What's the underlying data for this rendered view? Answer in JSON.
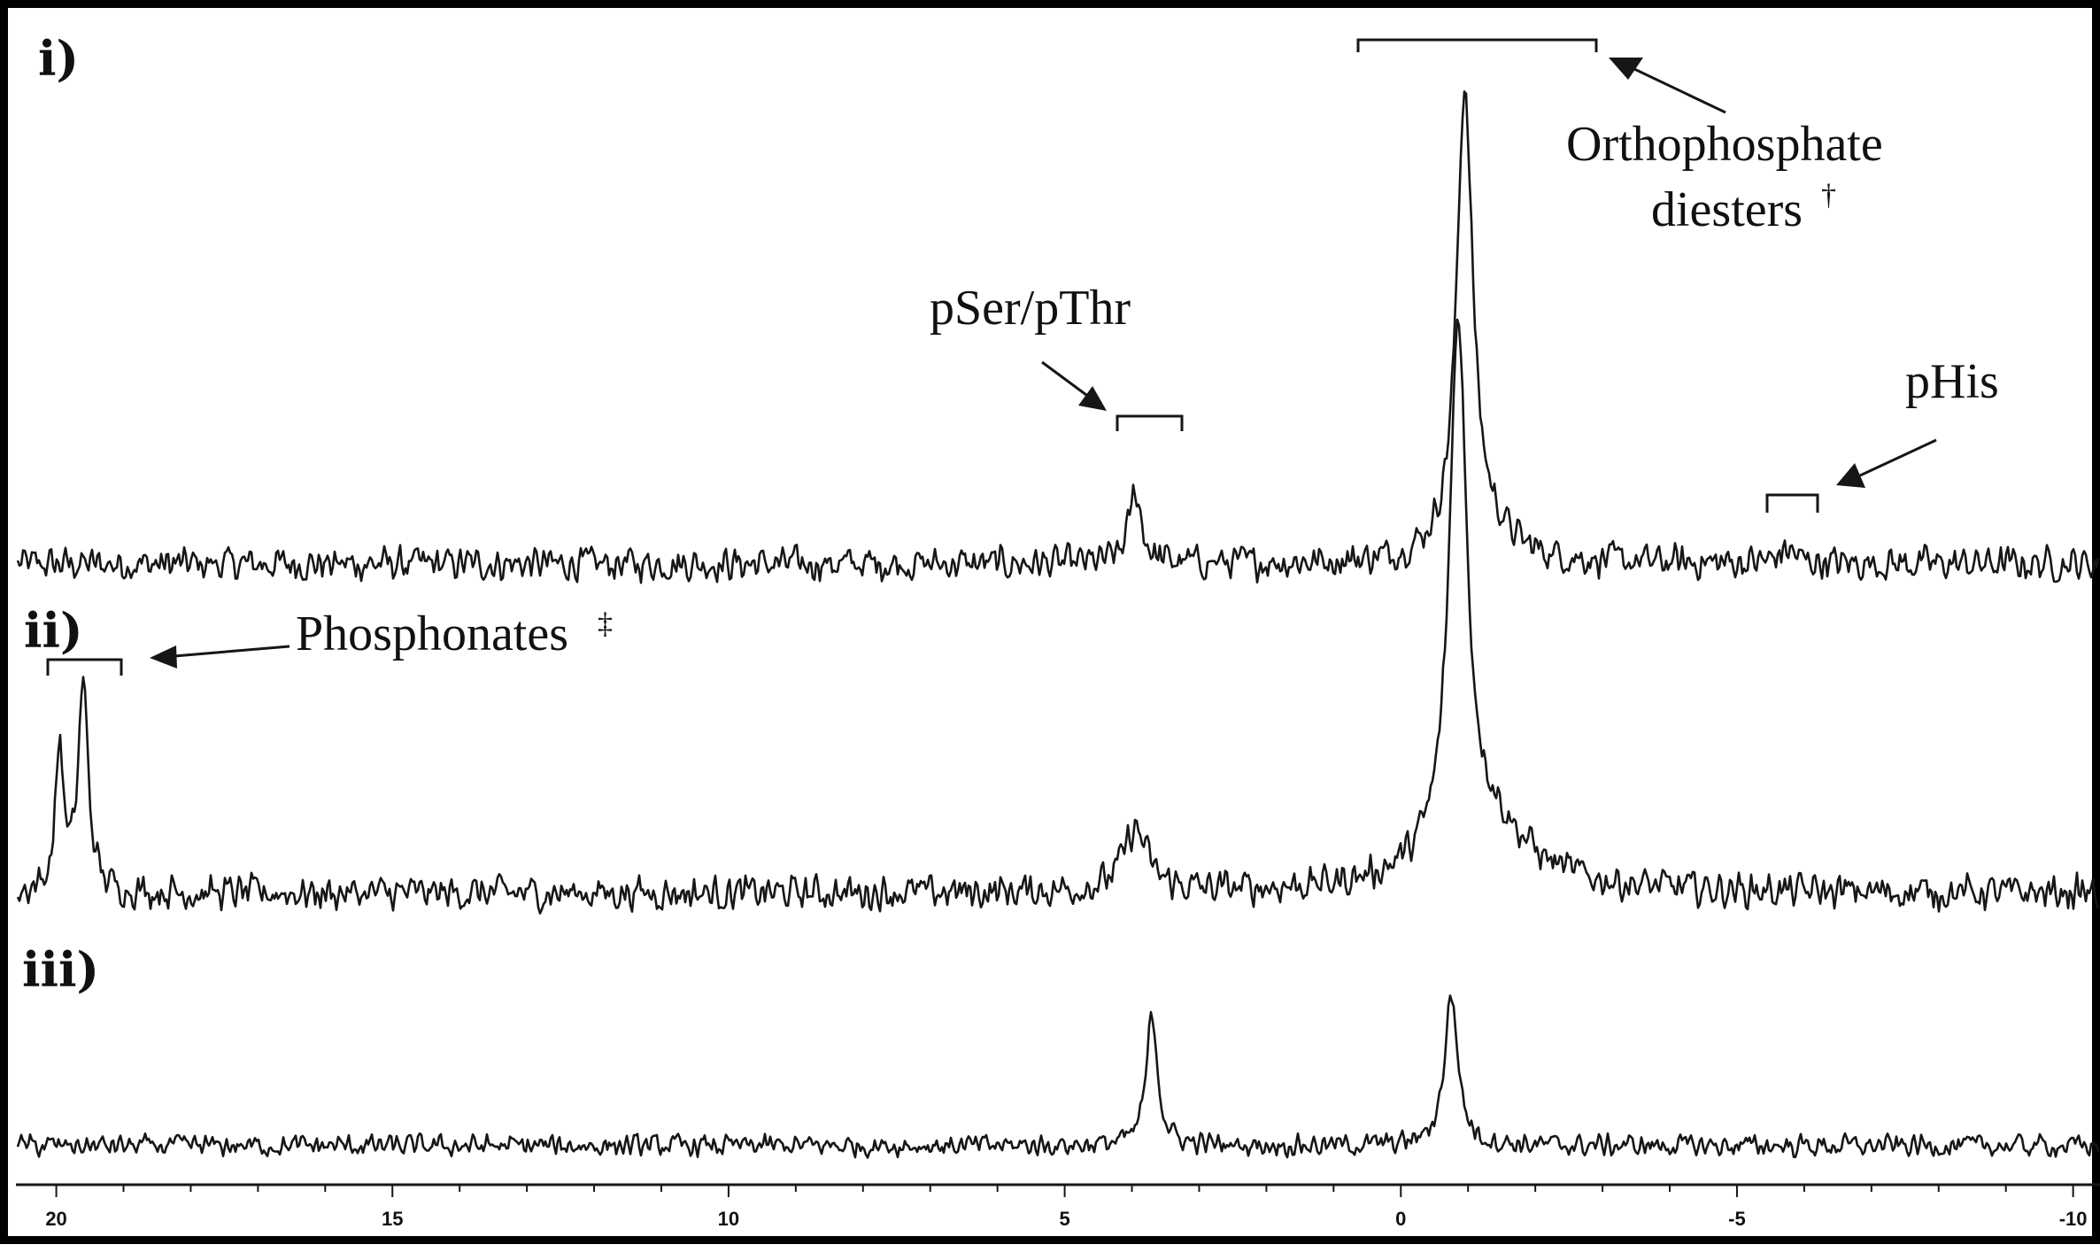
{
  "chart_data": {
    "type": "line",
    "x_axis": {
      "range": [
        20.6,
        -10.4
      ],
      "reversed": true,
      "ticks": [
        20,
        15,
        10,
        5,
        0,
        -5,
        -10
      ],
      "tick_labels": [
        "20",
        "15",
        "10",
        "5",
        "0",
        "-5",
        "-10"
      ],
      "minor_tick_step": 1,
      "label": ""
    },
    "grid": false,
    "panels": [
      {
        "label": "i)",
        "peaks": [
          {
            "ppm": 3.95,
            "height": 0.16,
            "width": 0.11
          },
          {
            "ppm": -0.95,
            "height": 1.0,
            "width": 0.14
          },
          {
            "ppm": -1.2,
            "height": 0.07,
            "width": 0.5
          },
          {
            "ppm": -5.75,
            "height": 0.03,
            "width": 0.15
          }
        ],
        "noise": 0.045
      },
      {
        "label": "ii)",
        "peaks": [
          {
            "ppm": 19.95,
            "height": 0.28,
            "width": 0.07
          },
          {
            "ppm": 19.6,
            "height": 0.4,
            "width": 0.09
          },
          {
            "ppm": 3.95,
            "height": 0.12,
            "width": 0.22
          },
          {
            "ppm": -0.85,
            "height": 1.0,
            "width": 0.15
          },
          {
            "ppm": -1.2,
            "height": 0.14,
            "width": 0.8
          }
        ],
        "noise": 0.04
      },
      {
        "label": "iii)",
        "peaks": [
          {
            "ppm": 3.7,
            "height": 0.7,
            "width": 0.1
          },
          {
            "ppm": -0.75,
            "height": 0.8,
            "width": 0.12
          }
        ],
        "noise": 0.07
      }
    ],
    "annotations": [
      {
        "text": "Orthophosphate",
        "line2": "diesters",
        "superscript": "†",
        "range_ppm": [
          0.7,
          -2.9
        ]
      },
      {
        "text": "pSer/pThr",
        "range_ppm": [
          4.25,
          3.25
        ]
      },
      {
        "text": "pHis",
        "range_ppm": [
          -5.45,
          -6.2
        ]
      },
      {
        "text": "Phosphonates",
        "superscript": "‡",
        "range_ppm": [
          20.2,
          19.1
        ]
      }
    ]
  }
}
